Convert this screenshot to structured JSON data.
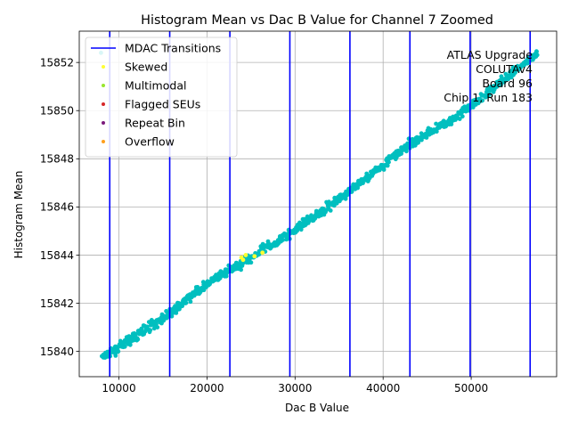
{
  "chart_data": {
    "type": "scatter",
    "title": "Histogram Mean vs Dac B Value for Channel 7 Zoomed",
    "xlabel": "Dac B Value",
    "ylabel": "Histogram Mean",
    "xlim": [
      5500,
      59700
    ],
    "ylim": [
      15838.95,
      15853.3
    ],
    "x_ticks": [
      10000,
      20000,
      30000,
      40000,
      50000
    ],
    "x_tick_labels": [
      "10000",
      "20000",
      "30000",
      "40000",
      "50000"
    ],
    "y_ticks": [
      15840,
      15842,
      15844,
      15846,
      15848,
      15850,
      15852
    ],
    "y_tick_labels": [
      "15840",
      "15842",
      "15844",
      "15846",
      "15848",
      "15850",
      "15852"
    ],
    "grid": true,
    "legend_position": "top-left",
    "legend": [
      {
        "label": "MDAC Transitions",
        "kind": "line",
        "color": "#0000ff"
      },
      {
        "label": "Skewed",
        "kind": "marker",
        "color": "#ffff33"
      },
      {
        "label": "Multimodal",
        "kind": "marker",
        "color": "#99e62e"
      },
      {
        "label": "Flagged SEUs",
        "kind": "marker",
        "color": "#d62728"
      },
      {
        "label": "Repeat Bin",
        "kind": "marker",
        "color": "#7b1a7b"
      },
      {
        "label": "Overflow",
        "kind": "marker",
        "color": "#ff9f1c"
      }
    ],
    "annotation": [
      "ATLAS Upgrade",
      "COLUTAv4",
      "Board 96",
      "Chip 1, Run 183"
    ],
    "mdac_transitions": [
      8960,
      15770,
      22600,
      29410,
      36230,
      43040,
      49880,
      56690
    ],
    "series": [
      {
        "color": "#00bfbf",
        "trend_points": [
          [
            8000,
            15839.7
          ],
          [
            9500,
            15840.05
          ],
          [
            15500,
            15841.5
          ],
          [
            20000,
            15842.8
          ],
          [
            29000,
            15844.8
          ],
          [
            36000,
            15846.6
          ],
          [
            43000,
            15848.6
          ],
          [
            49000,
            15849.9
          ],
          [
            57500,
            15852.4
          ]
        ],
        "spread": 0.17,
        "count": 900
      },
      {
        "color": "#ffff33",
        "points": [
          [
            23900,
            15843.9
          ],
          [
            24100,
            15843.8
          ],
          [
            24400,
            15844.0
          ],
          [
            25400,
            15843.95
          ],
          [
            26300,
            15844.1
          ]
        ]
      }
    ]
  }
}
